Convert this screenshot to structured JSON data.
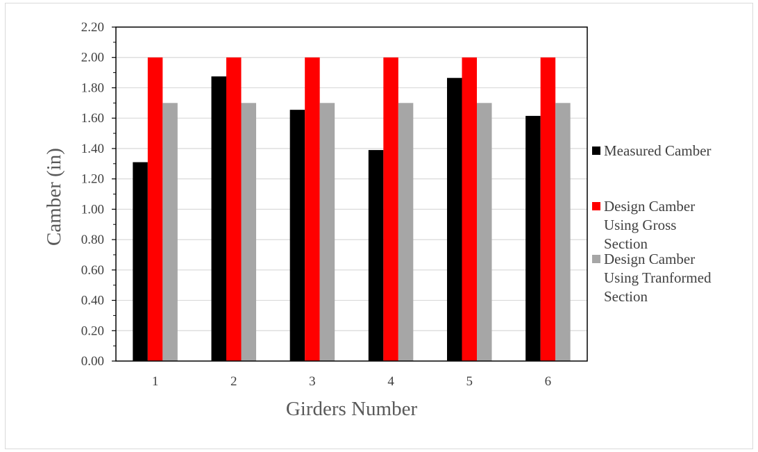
{
  "chart_data": {
    "type": "bar",
    "title": "",
    "xlabel": "Girders Number",
    "ylabel": "Camber (in)",
    "categories": [
      "1",
      "2",
      "3",
      "4",
      "5",
      "6"
    ],
    "ylim": [
      0,
      2.2
    ],
    "yticks": [
      "0.00",
      "0.20",
      "0.40",
      "0.60",
      "0.80",
      "1.00",
      "1.20",
      "1.40",
      "1.60",
      "1.80",
      "2.00",
      "2.20"
    ],
    "grid": true,
    "legend_position": "right",
    "series": [
      {
        "name": "Measured Camber",
        "legend_lines": [
          "Measured Camber"
        ],
        "color": "#000000",
        "values": [
          1.31,
          1.875,
          1.655,
          1.39,
          1.865,
          1.615
        ]
      },
      {
        "name": "Design Camber Using Gross Section",
        "legend_lines": [
          "Design Camber",
          "Using Gross",
          "Section"
        ],
        "color": "#ff0000",
        "values": [
          2.0,
          2.0,
          2.0,
          2.0,
          2.0,
          2.0
        ]
      },
      {
        "name": "Design Camber Using Tranformed Section",
        "legend_lines": [
          "Design Camber",
          "Using Tranformed",
          "Section"
        ],
        "color": "#a6a6a6",
        "values": [
          1.7,
          1.7,
          1.7,
          1.7,
          1.7,
          1.7
        ]
      }
    ]
  }
}
